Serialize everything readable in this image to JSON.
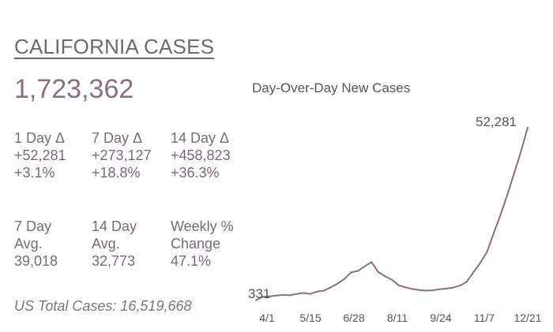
{
  "header": {
    "title": "CALIFORNIA CASES",
    "total": "1,723,362"
  },
  "stats": [
    {
      "lines": [
        "1 Day Δ",
        "+52,281",
        "+3.1%"
      ]
    },
    {
      "lines": [
        "7 Day Δ",
        "+273,127",
        "+18.8%"
      ]
    },
    {
      "lines": [
        "14 Day Δ",
        "+458,823",
        "+36.3%"
      ]
    },
    {
      "lines": [
        "7 Day",
        "Avg.",
        "39,018"
      ]
    },
    {
      "lines": [
        "14 Day",
        "Avg.",
        "32,773"
      ]
    },
    {
      "lines": [
        "Weekly %",
        "Change",
        "47.1%"
      ]
    }
  ],
  "us_total": "US Total Cases: 16,519,668",
  "colors": {
    "line": "#8a6d87",
    "title": "#6b6b6b",
    "accent": "#8a6d87"
  },
  "chart_data": {
    "type": "line",
    "title": "Day-Over-Day New Cases",
    "xlabel": "",
    "ylabel": "",
    "x_ticks": [
      "4/1",
      "5/15",
      "6/28",
      "8/11",
      "9/24",
      "11/7",
      "12/21"
    ],
    "ylim": [
      0,
      56000
    ],
    "grid": false,
    "annotations": [
      {
        "text": "331",
        "point": "first"
      },
      {
        "text": "52,281",
        "point": "last"
      }
    ],
    "series": [
      {
        "x": [
          "4/1",
          "4/8",
          "4/15",
          "4/22",
          "4/29",
          "5/6",
          "5/13",
          "5/20",
          "5/27",
          "6/3",
          "6/10",
          "6/17",
          "6/24",
          "7/1",
          "7/8",
          "7/15",
          "7/22",
          "7/29",
          "8/5",
          "8/12",
          "8/19",
          "8/26",
          "9/2",
          "9/9",
          "9/16",
          "9/23",
          "9/30",
          "10/7",
          "10/14",
          "10/21",
          "10/28",
          "11/4",
          "11/11",
          "11/18",
          "11/25",
          "12/2",
          "12/9",
          "12/16",
          "12/18",
          "12/20",
          "12/21"
        ],
        "values": [
          331,
          1300,
          1500,
          1700,
          1900,
          1800,
          2200,
          2500,
          2200,
          2900,
          3200,
          4200,
          5300,
          6700,
          8700,
          9100,
          10500,
          11800,
          8800,
          7500,
          6500,
          4800,
          4200,
          3700,
          3400,
          3200,
          3300,
          3600,
          3800,
          4100,
          4700,
          5800,
          8700,
          11500,
          14800,
          20500,
          26000,
          32000,
          38500,
          45000,
          52281
        ]
      }
    ]
  }
}
